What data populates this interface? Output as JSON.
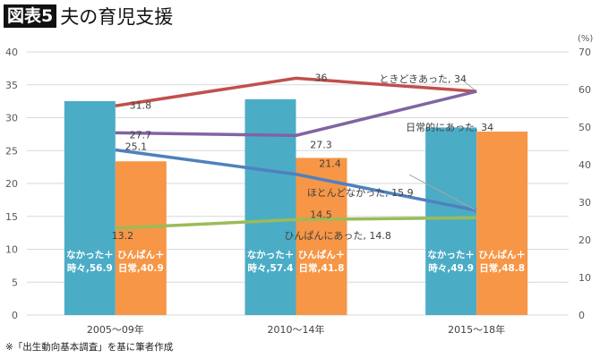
{
  "header": {
    "tag": "図表5",
    "title": "夫の育児支援"
  },
  "footnote": "※「出生動向基本調査」を基に筆者作成",
  "chart_data": {
    "type": "bar+line",
    "categories": [
      "2005～09年",
      "2010～14年",
      "2015～18年"
    ],
    "bar_axis": {
      "side": "right",
      "ylim": [
        0,
        70
      ],
      "ticks": [
        0,
        10,
        20,
        30,
        40,
        50,
        60,
        70
      ],
      "unit": "(%)"
    },
    "line_axis": {
      "side": "left",
      "ylim": [
        0,
        40
      ],
      "ticks": [
        0,
        5,
        10,
        15,
        20,
        25,
        30,
        35,
        40
      ]
    },
    "grid": true,
    "bars": [
      {
        "name": "なかった＋時々",
        "color": "#4bacc6",
        "values": [
          56.9,
          57.4,
          49.9
        ]
      },
      {
        "name": "ひんぱん＋日常",
        "color": "#f79646",
        "values": [
          40.9,
          41.8,
          48.8
        ]
      }
    ],
    "lines": [
      {
        "name": "ときどきあった",
        "color": "#c0504d",
        "values": [
          31.8,
          36,
          34
        ]
      },
      {
        "name": "日常的にあった",
        "color": "#8064a2",
        "values": [
          27.7,
          27.3,
          34
        ]
      },
      {
        "name": "ほとんどなかった",
        "color": "#4f81bd",
        "values": [
          25.1,
          21.4,
          15.9
        ]
      },
      {
        "name": "ひんぱんにあった",
        "color": "#9bbb59",
        "values": [
          13.2,
          14.5,
          14.8
        ]
      }
    ]
  }
}
